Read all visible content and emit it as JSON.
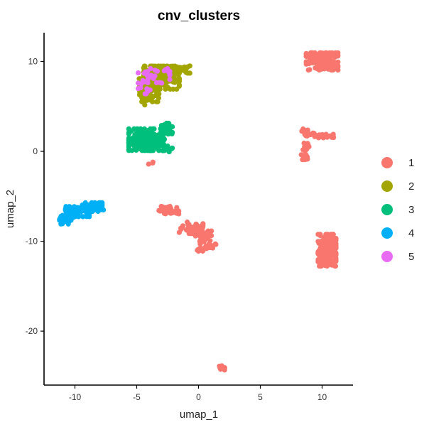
{
  "chart_data": {
    "type": "scatter",
    "title": "cnv_clusters",
    "xlabel": "umap_1",
    "ylabel": "umap_2",
    "xlim": [
      -12.5,
      12.5
    ],
    "ylim": [
      -26,
      13.2
    ],
    "xticks": [
      -10,
      -5,
      0,
      5,
      10
    ],
    "yticks": [
      10,
      0,
      -10,
      -20
    ],
    "grid": false,
    "legend_position": "right",
    "series": [
      {
        "name": "1",
        "color": "#F8766D",
        "clusters": [
          {
            "cx": 10.0,
            "cy": 10.0,
            "sx": 0.8,
            "sy": 0.6,
            "n": 120
          },
          {
            "cx": 8.6,
            "cy": 2.3,
            "sx": 0.15,
            "sy": 0.12,
            "n": 10
          },
          {
            "cx": 9.0,
            "cy": 1.9,
            "sx": 0.25,
            "sy": 0.12,
            "n": 14
          },
          {
            "cx": 10.2,
            "cy": 1.7,
            "sx": 0.5,
            "sy": 0.12,
            "n": 26
          },
          {
            "cx": 8.7,
            "cy": 0.5,
            "sx": 0.15,
            "sy": 0.35,
            "n": 14
          },
          {
            "cx": 8.6,
            "cy": -0.6,
            "sx": 0.2,
            "sy": 0.2,
            "n": 10
          },
          {
            "cx": 10.4,
            "cy": -11.0,
            "sx": 0.45,
            "sy": 1.1,
            "n": 160
          },
          {
            "cx": -2.4,
            "cy": -6.6,
            "sx": 0.5,
            "sy": 0.3,
            "n": 30
          },
          {
            "cx": -0.6,
            "cy": -8.5,
            "sx": 0.6,
            "sy": 0.4,
            "n": 40
          },
          {
            "cx": 0.4,
            "cy": -9.5,
            "sx": 0.4,
            "sy": 0.4,
            "n": 40
          },
          {
            "cx": 0.6,
            "cy": -10.7,
            "sx": 0.5,
            "sy": 0.25,
            "n": 30
          },
          {
            "cx": 1.8,
            "cy": -24.1,
            "sx": 0.2,
            "sy": 0.15,
            "n": 8
          },
          {
            "cx": -3.8,
            "cy": -1.3,
            "sx": 0.15,
            "sy": 0.1,
            "n": 3
          },
          {
            "cx": -10.1,
            "cy": -6.6,
            "sx": 0.1,
            "sy": 0.1,
            "n": 2
          }
        ]
      },
      {
        "name": "2",
        "color": "#A3A500",
        "clusters": [
          {
            "cx": -4.0,
            "cy": 6.8,
            "sx": 0.5,
            "sy": 0.8,
            "n": 90
          },
          {
            "cx": -3.0,
            "cy": 8.2,
            "sx": 0.9,
            "sy": 0.8,
            "n": 160
          },
          {
            "cx": -1.5,
            "cy": 9.1,
            "sx": 0.5,
            "sy": 0.25,
            "n": 30
          },
          {
            "cx": -4.2,
            "cy": 5.8,
            "sx": 0.2,
            "sy": 0.4,
            "n": 10
          }
        ]
      },
      {
        "name": "3",
        "color": "#00BF7D",
        "clusters": [
          {
            "cx": -4.2,
            "cy": 1.3,
            "sx": 0.9,
            "sy": 0.75,
            "n": 220
          },
          {
            "cx": -2.6,
            "cy": 2.5,
            "sx": 0.3,
            "sy": 0.4,
            "n": 30
          },
          {
            "cx": -2.5,
            "cy": 0.2,
            "sx": 0.25,
            "sy": 0.3,
            "n": 15
          }
        ]
      },
      {
        "name": "4",
        "color": "#00B0F6",
        "clusters": [
          {
            "cx": -10.6,
            "cy": -7.6,
            "sx": 0.4,
            "sy": 0.3,
            "n": 30
          },
          {
            "cx": -9.8,
            "cy": -6.7,
            "sx": 0.6,
            "sy": 0.35,
            "n": 70
          },
          {
            "cx": -8.6,
            "cy": -6.2,
            "sx": 0.5,
            "sy": 0.3,
            "n": 50
          },
          {
            "cx": -7.9,
            "cy": -6.5,
            "sx": 0.2,
            "sy": 0.12,
            "n": 10
          }
        ]
      },
      {
        "name": "5",
        "color": "#E76BF3",
        "clusters": [
          {
            "cx": -3.6,
            "cy": 8.4,
            "sx": 0.8,
            "sy": 0.5,
            "n": 30
          },
          {
            "cx": -4.4,
            "cy": 7.2,
            "sx": 0.3,
            "sy": 0.5,
            "n": 10
          }
        ]
      }
    ]
  }
}
